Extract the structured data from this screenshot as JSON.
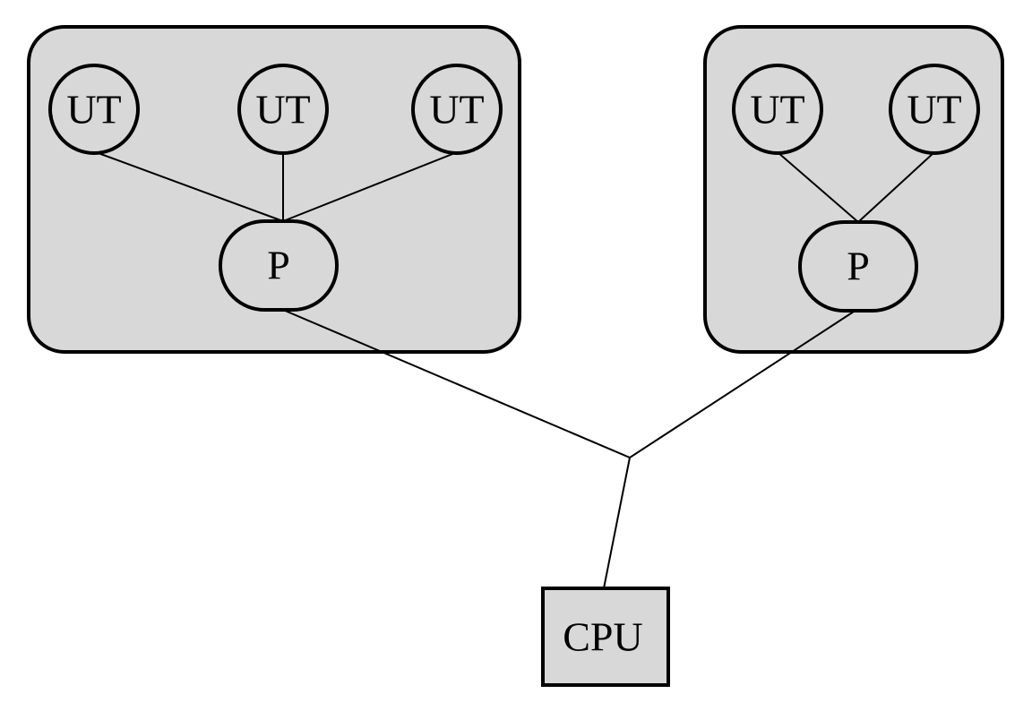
{
  "diagram": {
    "groups": [
      {
        "id": "group-left",
        "terminals": [
          "UT",
          "UT",
          "UT"
        ],
        "processor": "P"
      },
      {
        "id": "group-right",
        "terminals": [
          "UT",
          "UT"
        ],
        "processor": "P"
      }
    ],
    "cpu": "CPU"
  },
  "colors": {
    "fill": "#d8d8d8",
    "stroke": "#000000",
    "background": "#ffffff"
  }
}
